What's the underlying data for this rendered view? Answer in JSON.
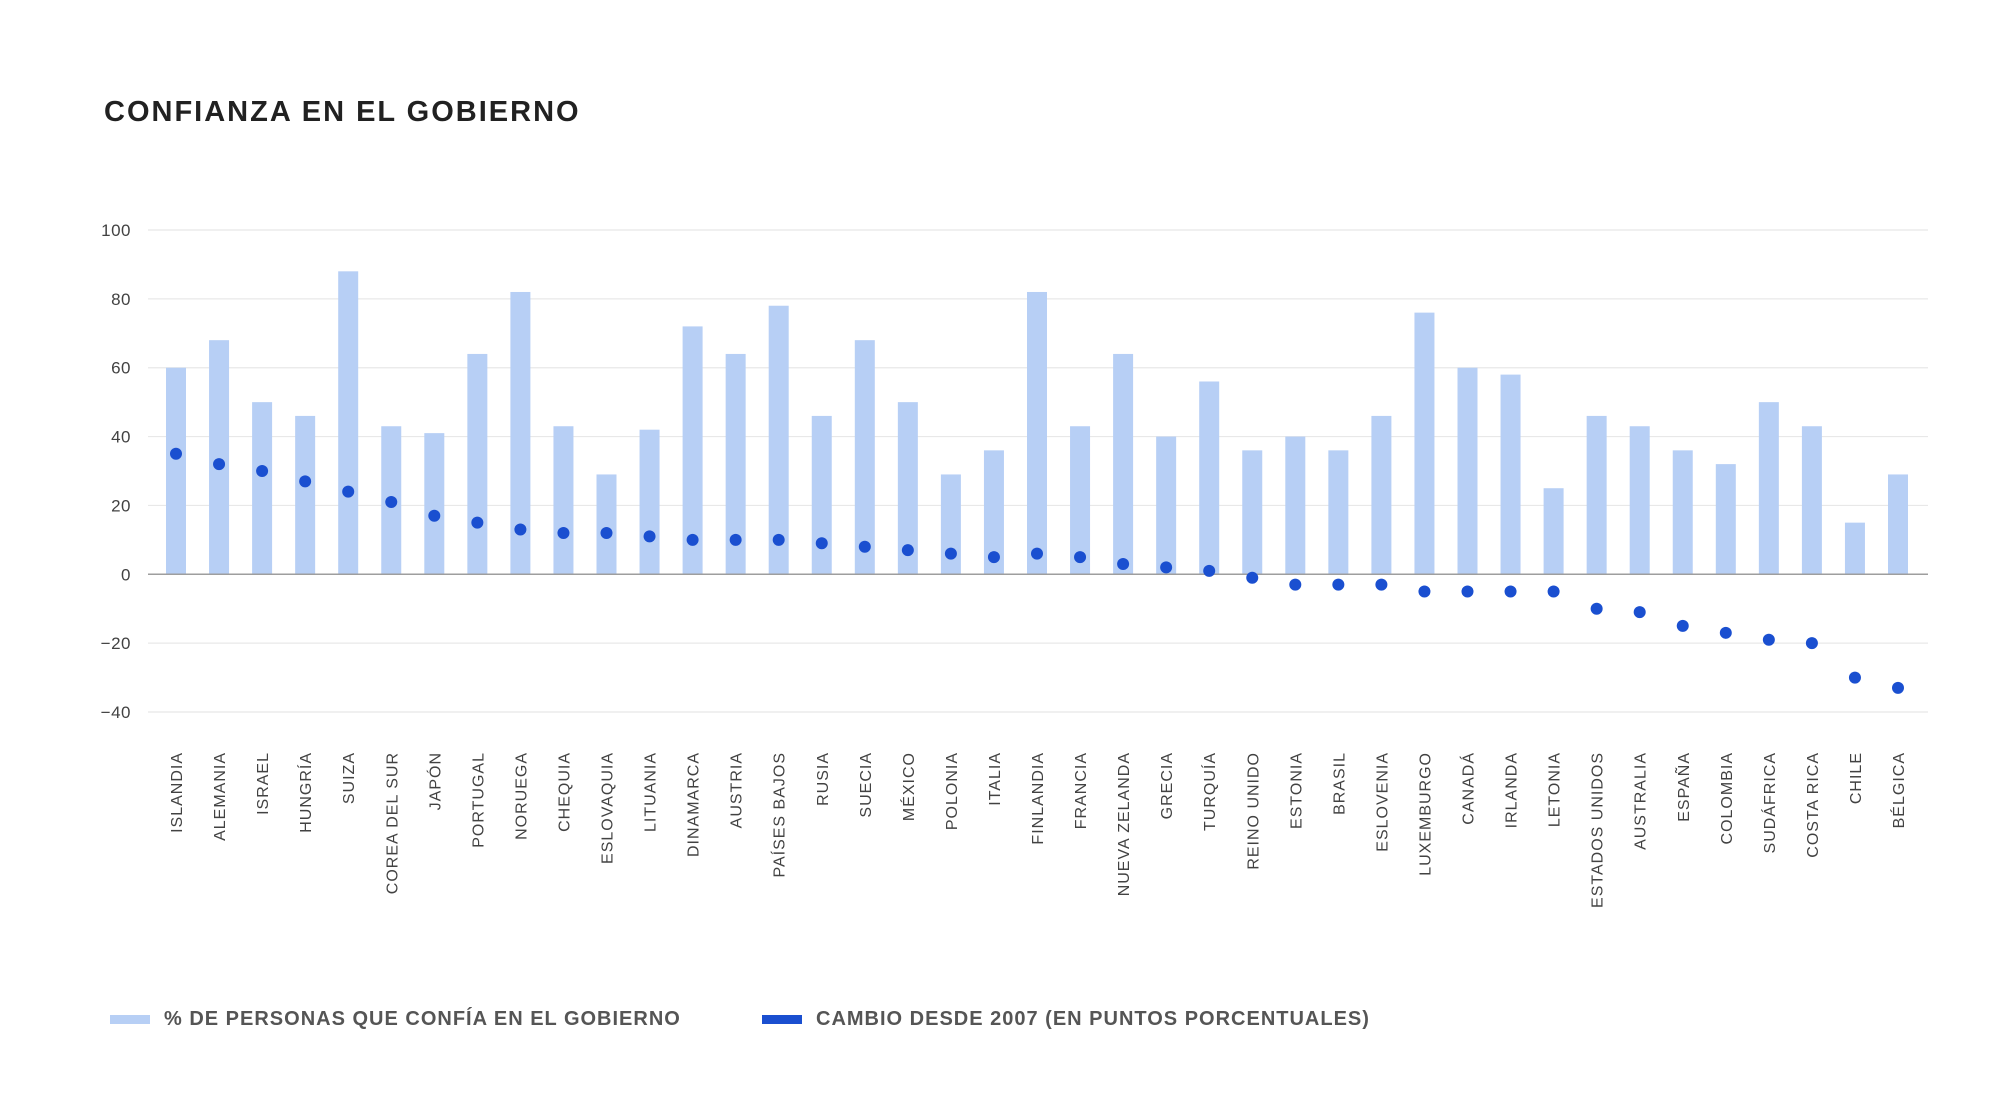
{
  "chart_data": {
    "type": "bar",
    "title": "CONFIANZA EN EL GOBIERNO",
    "categories": [
      "ISLANDIA",
      "ALEMANIA",
      "ISRAEL",
      "HUNGRÍA",
      "SUIZA",
      "COREA DEL SUR",
      "JAPÓN",
      "PORTUGAL",
      "NORUEGA",
      "CHEQUIA",
      "ESLOVAQUIA",
      "LITUANIA",
      "DINAMARCA",
      "AUSTRIA",
      "PAÍSES BAJOS",
      "RUSIA",
      "SUECIA",
      "MÉXICO",
      "POLONIA",
      "ITALIA",
      "FINLANDIA",
      "FRANCIA",
      "NUEVA ZELANDA",
      "GRECIA",
      "TURQUÍA",
      "REINO UNIDO",
      "ESTONIA",
      "BRASIL",
      "ESLOVENIA",
      "LUXEMBURGO",
      "CANADÁ",
      "IRLANDA",
      "LETONIA",
      "ESTADOS UNIDOS",
      "AUSTRALIA",
      "ESPAÑA",
      "COLOMBIA",
      "SUDÁFRICA",
      "COSTA RICA",
      "CHILE",
      "BÉLGICA"
    ],
    "series": [
      {
        "name": "% DE PERSONAS QUE CONFÍA EN EL GOBIERNO",
        "type": "bar",
        "color": "#b7cff5",
        "values": [
          60,
          68,
          50,
          46,
          88,
          43,
          41,
          64,
          82,
          43,
          29,
          42,
          72,
          64,
          78,
          46,
          68,
          50,
          29,
          36,
          82,
          43,
          64,
          40,
          56,
          36,
          40,
          36,
          46,
          76,
          60,
          58,
          25,
          46,
          43,
          36,
          32,
          50,
          43,
          15,
          29
        ]
      },
      {
        "name": "CAMBIO DESDE 2007 (EN PUNTOS PORCENTUALES)",
        "type": "scatter",
        "color": "#1a4fd0",
        "values": [
          35,
          32,
          30,
          27,
          24,
          21,
          17,
          15,
          13,
          12,
          12,
          11,
          10,
          10,
          10,
          9,
          8,
          7,
          6,
          5,
          6,
          5,
          3,
          2,
          1,
          -1,
          -3,
          -3,
          -3,
          -5,
          -5,
          -5,
          -5,
          -10,
          -11,
          -15,
          -17,
          -19,
          -20,
          -30,
          -33
        ]
      }
    ],
    "ylim": [
      -40,
      100
    ],
    "yticks": [
      100,
      80,
      60,
      40,
      20,
      0,
      -20,
      -40
    ],
    "xlabel": "",
    "ylabel": "",
    "grid": true,
    "legend_position": "bottom-left"
  },
  "colors": {
    "bar": "#b7cff5",
    "dot": "#1a4fd0",
    "grid": "#e8e8e8",
    "zero_line": "#9e9e9e"
  }
}
